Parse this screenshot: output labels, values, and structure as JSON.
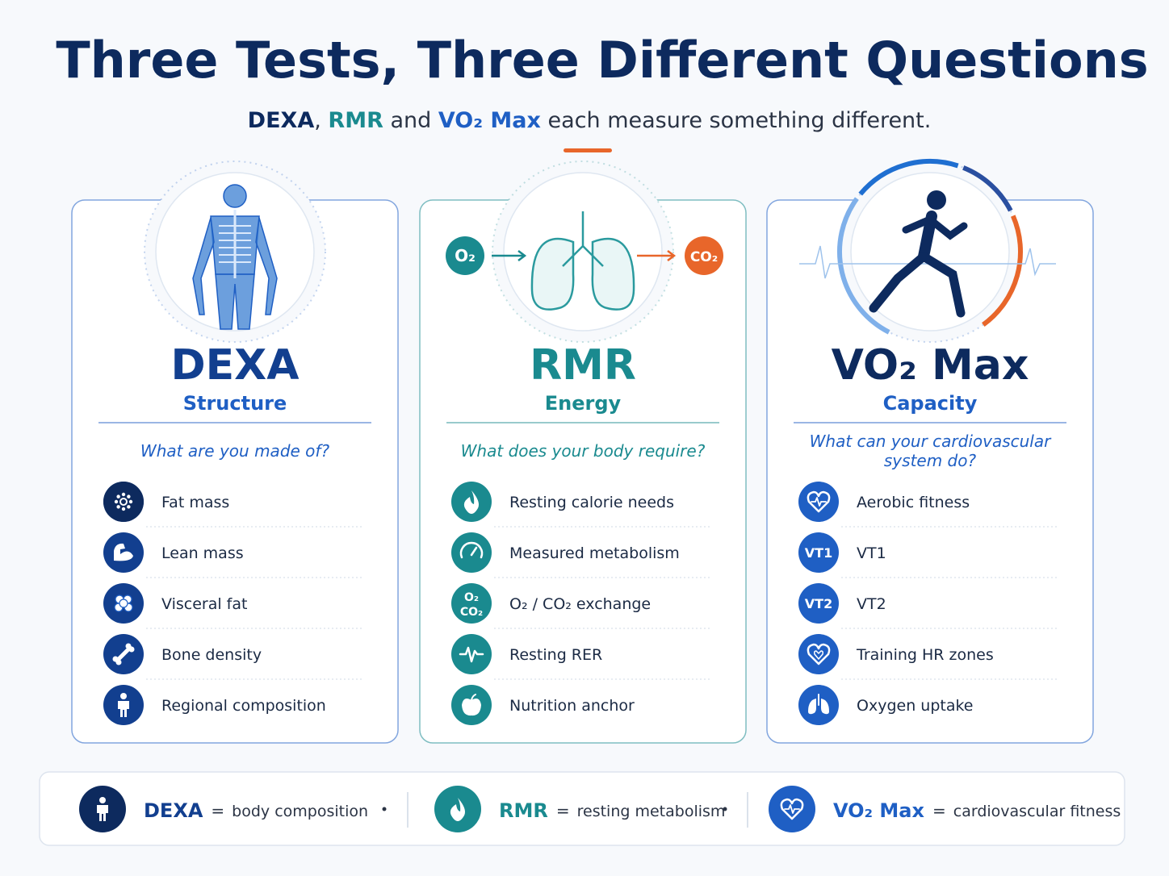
{
  "header": {
    "title": "Three Tests, Three Different Questions",
    "subtitle": [
      {
        "text": "DEXA",
        "color": "#0d2a5e"
      },
      {
        "text": ", ",
        "color": "#2b3445"
      },
      {
        "text": "RMR",
        "color": "#1a8a8f"
      },
      {
        "text": " and ",
        "color": "#2b3445"
      },
      {
        "text": "VO₂ Max",
        "color": "#1f5fc4"
      },
      {
        "text": " each measure something different.",
        "color": "#2b3445"
      }
    ]
  },
  "cards": [
    {
      "name": "DEXA",
      "focus": "Structure",
      "question": [
        "What are you made of?"
      ],
      "color": "#123f8f",
      "accent": "#1f5fc4",
      "items": [
        {
          "label": "Fat mass"
        },
        {
          "label": "Lean mass"
        },
        {
          "label": "Visceral fat"
        },
        {
          "label": "Bone density"
        },
        {
          "label": "Regional composition"
        }
      ]
    },
    {
      "name": "RMR",
      "focus": "Energy",
      "question": [
        "What does your body require?"
      ],
      "color": "#1a8a8f",
      "accent": "#1a8a8f",
      "badges": [
        "O₂",
        "CO₂"
      ],
      "items": [
        {
          "label": "Resting calorie needs"
        },
        {
          "label": "Measured metabolism"
        },
        {
          "label": "O₂ / CO₂ exchange",
          "icon_text": [
            "O₂",
            "CO₂"
          ]
        },
        {
          "label": "Resting RER"
        },
        {
          "label": "Nutrition anchor"
        }
      ]
    },
    {
      "name": "VO₂ Max",
      "focus": "Capacity",
      "question": [
        "What can your cardiovascular",
        "system do?"
      ],
      "color": "#0d2a5e",
      "accent": "#1f5fc4",
      "items": [
        {
          "label": "Aerobic fitness"
        },
        {
          "label": "VT1",
          "icon_text": [
            "VT1"
          ]
        },
        {
          "label": "VT2",
          "icon_text": [
            "VT2"
          ]
        },
        {
          "label": "Training HR zones"
        },
        {
          "label": "Oxygen uptake"
        }
      ]
    }
  ],
  "summary": {
    "separator": "=",
    "entries": [
      {
        "name": "DEXA",
        "meaning": "body composition",
        "color": "#123f8f"
      },
      {
        "name": "RMR",
        "meaning": "resting metabolism",
        "color": "#1a8a8f"
      },
      {
        "name": "VO₂ Max",
        "meaning": "cardiovascular fitness",
        "color": "#1f5fc4"
      }
    ]
  }
}
